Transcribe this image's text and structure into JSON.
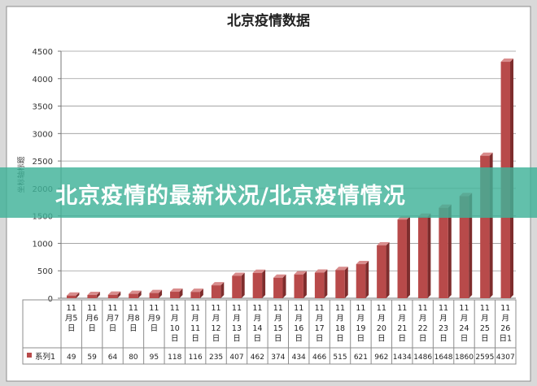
{
  "chart_data": {
    "type": "bar",
    "title": "北京疫情数据",
    "ylabel": "坐标轴标题",
    "ylim": [
      0,
      4500
    ],
    "yticks": [
      0,
      500,
      1000,
      1500,
      2000,
      2500,
      3000,
      3500,
      4000,
      4500
    ],
    "grid": true,
    "bar_color": "#b84a4a",
    "categories": [
      "11月5日",
      "11月6日",
      "11月7日",
      "11月8日",
      "11月9日",
      "11月10日",
      "11月11日",
      "11月12日",
      "11月13日",
      "11月14日",
      "11月15日",
      "11月16日",
      "11月17日",
      "11月18日",
      "11月19日",
      "11月20日",
      "11月21日",
      "11月22日",
      "11月23日",
      "11月24日",
      "11月25日",
      "11月26日1"
    ],
    "category_lines": [
      [
        "11",
        "月5",
        "日"
      ],
      [
        "11",
        "月6",
        "日"
      ],
      [
        "11",
        "月7",
        "日"
      ],
      [
        "11",
        "月8",
        "日"
      ],
      [
        "11",
        "月9",
        "日"
      ],
      [
        "11",
        "月",
        "10",
        "日"
      ],
      [
        "11",
        "月",
        "11",
        "日"
      ],
      [
        "11",
        "月",
        "12",
        "日"
      ],
      [
        "11",
        "月",
        "13",
        "日"
      ],
      [
        "11",
        "月",
        "14",
        "日"
      ],
      [
        "11",
        "月",
        "15",
        "日"
      ],
      [
        "11",
        "月",
        "16",
        "日"
      ],
      [
        "11",
        "月",
        "17",
        "日"
      ],
      [
        "11",
        "月",
        "18",
        "日"
      ],
      [
        "11",
        "月",
        "19",
        "日"
      ],
      [
        "11",
        "月",
        "20",
        "日"
      ],
      [
        "11",
        "月",
        "21",
        "日"
      ],
      [
        "11",
        "月",
        "22",
        "日"
      ],
      [
        "11",
        "月",
        "23",
        "日"
      ],
      [
        "11",
        "月",
        "24",
        "日"
      ],
      [
        "11",
        "月",
        "25",
        "日"
      ],
      [
        "11",
        "月",
        "26",
        "日1"
      ]
    ],
    "series": [
      {
        "name": "系列1",
        "values": [
          49,
          59,
          64,
          80,
          95,
          118,
          116,
          235,
          407,
          462,
          374,
          434,
          466,
          515,
          621,
          962,
          1434,
          1486,
          1648,
          1860,
          2595,
          4307
        ]
      }
    ]
  },
  "banner": {
    "text": "北京疫情的最新状况/北京疫情情况"
  }
}
